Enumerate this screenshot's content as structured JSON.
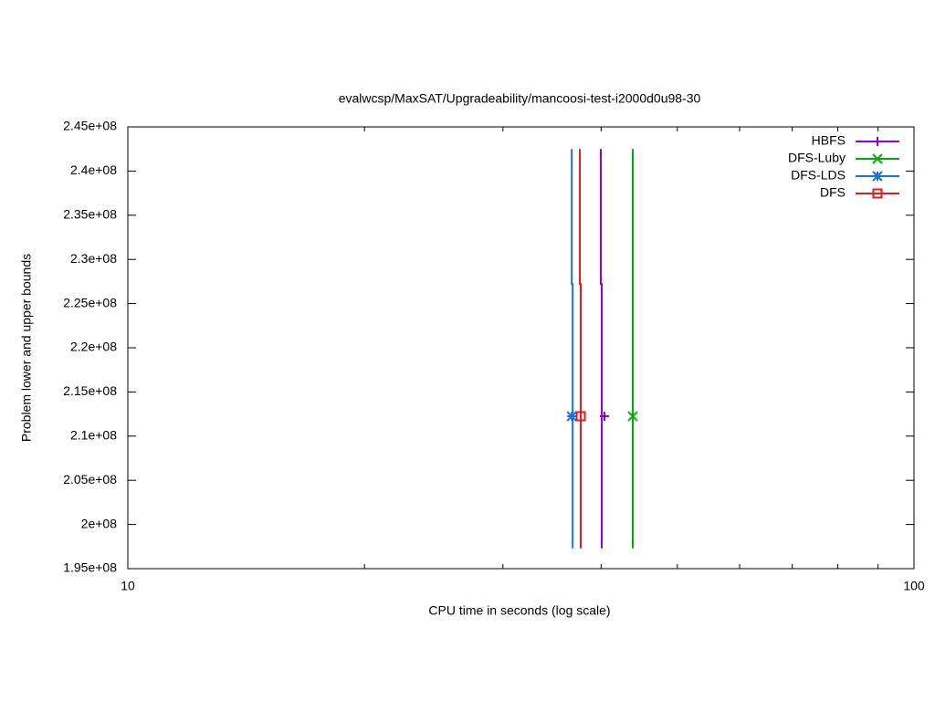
{
  "chart_data": {
    "type": "line",
    "title": "evalwcsp/MaxSAT/Upgradeability/mancoosi-test-i2000d0u98-30",
    "x_label": "CPU time in seconds (log scale)",
    "y_label": "Problem lower and upper bounds",
    "x_log_scale": true,
    "xlim": [
      10,
      100
    ],
    "xticks": [
      10,
      100
    ],
    "xminorticks": [
      20,
      30,
      40,
      50,
      60,
      70,
      80,
      90
    ],
    "ylim": [
      195000000,
      245000000
    ],
    "yticks": [
      {
        "value": 195000000,
        "label": "1.95e+08"
      },
      {
        "value": 200000000,
        "label": "2e+08"
      },
      {
        "value": 205000000,
        "label": "2.05e+08"
      },
      {
        "value": 210000000,
        "label": "2.1e+08"
      },
      {
        "value": 215000000,
        "label": "2.15e+08"
      },
      {
        "value": 220000000,
        "label": "2.2e+08"
      },
      {
        "value": 225000000,
        "label": "2.25e+08"
      },
      {
        "value": 230000000,
        "label": "2.3e+08"
      },
      {
        "value": 235000000,
        "label": "2.35e+08"
      },
      {
        "value": 240000000,
        "label": "2.4e+08"
      },
      {
        "value": 245000000,
        "label": "2.45e+08"
      }
    ],
    "grid": false,
    "legend_position": "top-right",
    "series": [
      {
        "name": "HBFS",
        "color": "#9400d3",
        "marker_shape": "plus",
        "x": [
          40.07,
          40.07,
          39.96,
          39.96
        ],
        "values": [
          197300000,
          227200000,
          227200000,
          242500000
        ],
        "marker": {
          "x": 40.39,
          "y": 212250000
        }
      },
      {
        "name": "DFS-Luby",
        "color": "#00b000",
        "marker_shape": "cross",
        "x": [
          43.88,
          43.88
        ],
        "values": [
          197300000,
          242500000
        ],
        "marker": {
          "x": 43.88,
          "y": 212250000
        }
      },
      {
        "name": "DFS-LDS",
        "color": "#1a72d8",
        "marker_shape": "asterisk",
        "x": [
          36.8,
          36.8,
          36.7,
          36.7
        ],
        "values": [
          197300000,
          227200000,
          227200000,
          242500000
        ],
        "marker": {
          "x": 36.7,
          "y": 212250000
        }
      },
      {
        "name": "DFS",
        "color": "#e51a1a",
        "marker_shape": "square",
        "x": [
          37.68,
          37.68,
          37.58,
          37.58
        ],
        "values": [
          197300000,
          227200000,
          227200000,
          242500000
        ],
        "marker": {
          "x": 37.68,
          "y": 212250000
        }
      }
    ]
  }
}
